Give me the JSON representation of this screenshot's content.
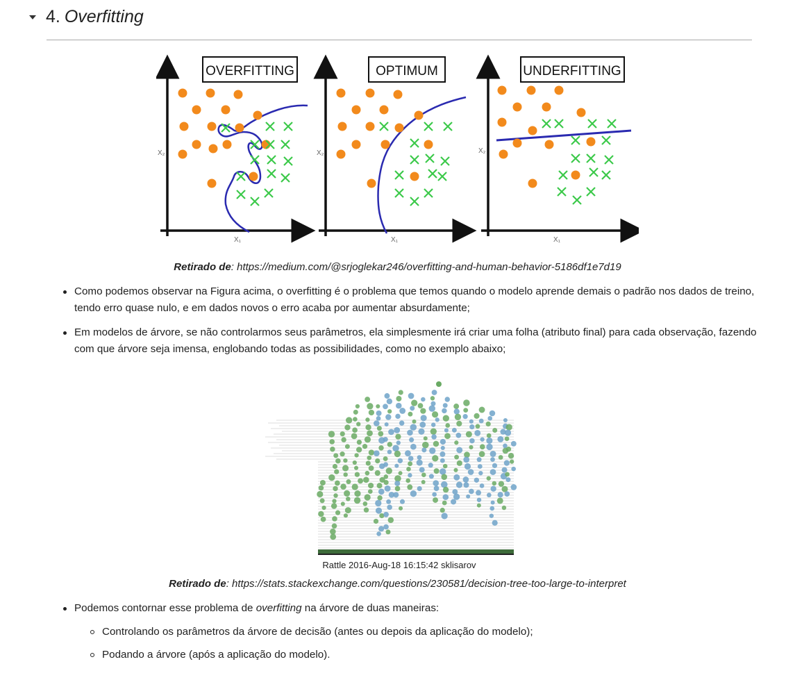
{
  "section": {
    "number": "4.",
    "title": "Overfitting"
  },
  "figure1": {
    "panels": [
      "OVERFITTING",
      "OPTIMUM",
      "UNDERFITTING"
    ],
    "x_axis_label": "X₁",
    "y_axis_label": "X₂",
    "caption_bold": "Retirado de",
    "caption_text": ": https://medium.com/@srjoglekar246/overfitting-and-human-behavior-5186df1e7d19"
  },
  "bullets": [
    "Como podemos observar na Figura acima, o overfitting é o problema que temos quando o modelo aprende demais o padrão nos dados de treino, tendo erro quase nulo, e em dados novos o erro acaba por aumentar absurdamente;",
    "Em modelos de árvore, se não controlarmos seus parâmetros, ela simplesmente irá criar uma folha (atributo final) para cada observação, fazendo com que árvore seja imensa, englobando todas as possibilidades, como no exemplo abaixo;"
  ],
  "figure2": {
    "label": "Rattle 2016-Aug-18 16:15:42 sklisarov",
    "caption_bold": "Retirado de",
    "caption_text": ": https://stats.stackexchange.com/questions/230581/decision-tree-too-large-to-interpret"
  },
  "bullet3": {
    "before": "Podemos contornar esse problema de ",
    "italic": "overfitting",
    "after": " na árvore de duas maneiras:"
  },
  "sub_bullets": [
    "Controlando os parâmetros da árvore de decisão (antes ou depois da aplicação do modelo);",
    "Podando a árvore (após a aplicação do modelo)."
  ],
  "colors": {
    "orange": "#f28a1c",
    "green": "#3cc94a",
    "blue_curve": "#2a2ab0",
    "tree_green": "#6aaa64",
    "tree_blue": "#6fa3c9"
  }
}
